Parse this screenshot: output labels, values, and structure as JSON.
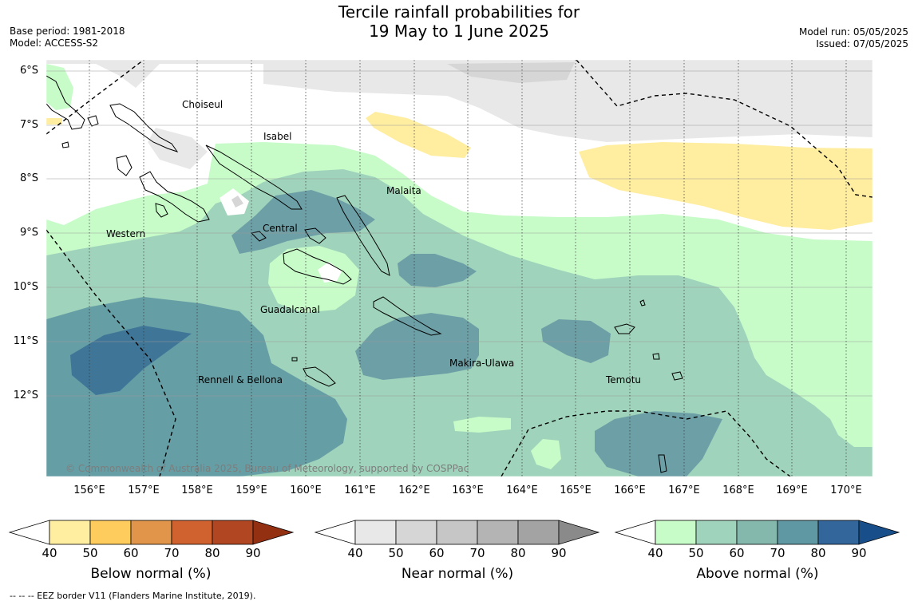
{
  "header": {
    "title_line1": "Tercile rainfall probabilities for",
    "title_line2": "19 May to 1 June 2025",
    "base_period": "Base period: 1981-2018",
    "model": "Model: ACCESS-S2",
    "model_run": "Model run: 05/05/2025",
    "issued": "Issued: 07/05/2025"
  },
  "map": {
    "lat_labels": [
      "6°S",
      "7°S",
      "8°S",
      "9°S",
      "10°S",
      "11°S",
      "12°S"
    ],
    "lon_labels": [
      "156°E",
      "157°E",
      "158°E",
      "159°E",
      "160°E",
      "161°E",
      "162°E",
      "163°E",
      "164°E",
      "165°E",
      "166°E",
      "167°E",
      "168°E",
      "169°E",
      "170°E"
    ],
    "regions": {
      "choiseul": "Choiseul",
      "isabel": "Isabel",
      "malaita": "Malaita",
      "western": "Western",
      "central": "Central",
      "guadalcanal": "Guadalcanal",
      "makira": "Makira-Ulawa",
      "rennell": "Rennell & Bellona",
      "temotu": "Temotu"
    },
    "copyright": "© Commonwealth of Australia 2025, Bureau of Meteorology, supported by COSPPac"
  },
  "colors": {
    "below": [
      "#ffeda0",
      "#fecc5c",
      "#e1954a",
      "#d0622f",
      "#b04722",
      "#933012"
    ],
    "near": [
      "#e8e8e8",
      "#d6d6d6",
      "#c6c6c6",
      "#b4b4b4",
      "#a3a3a3",
      "#8a8a8a"
    ],
    "above": [
      "#c7fcc9",
      "#a0d3bb",
      "#84b8ad",
      "#5f98a3",
      "#33669a",
      "#184f8a"
    ],
    "ocean": "#ffffff",
    "grid": "#999999"
  },
  "legend": {
    "ticks": [
      "40",
      "50",
      "60",
      "70",
      "80",
      "90"
    ],
    "below_title": "Below normal (%)",
    "near_title": "Near normal (%)",
    "above_title": "Above normal (%)"
  },
  "footer": {
    "eez_note": "--  --  -- EEZ border V11 (Flanders Marine Institute, 2019)."
  }
}
